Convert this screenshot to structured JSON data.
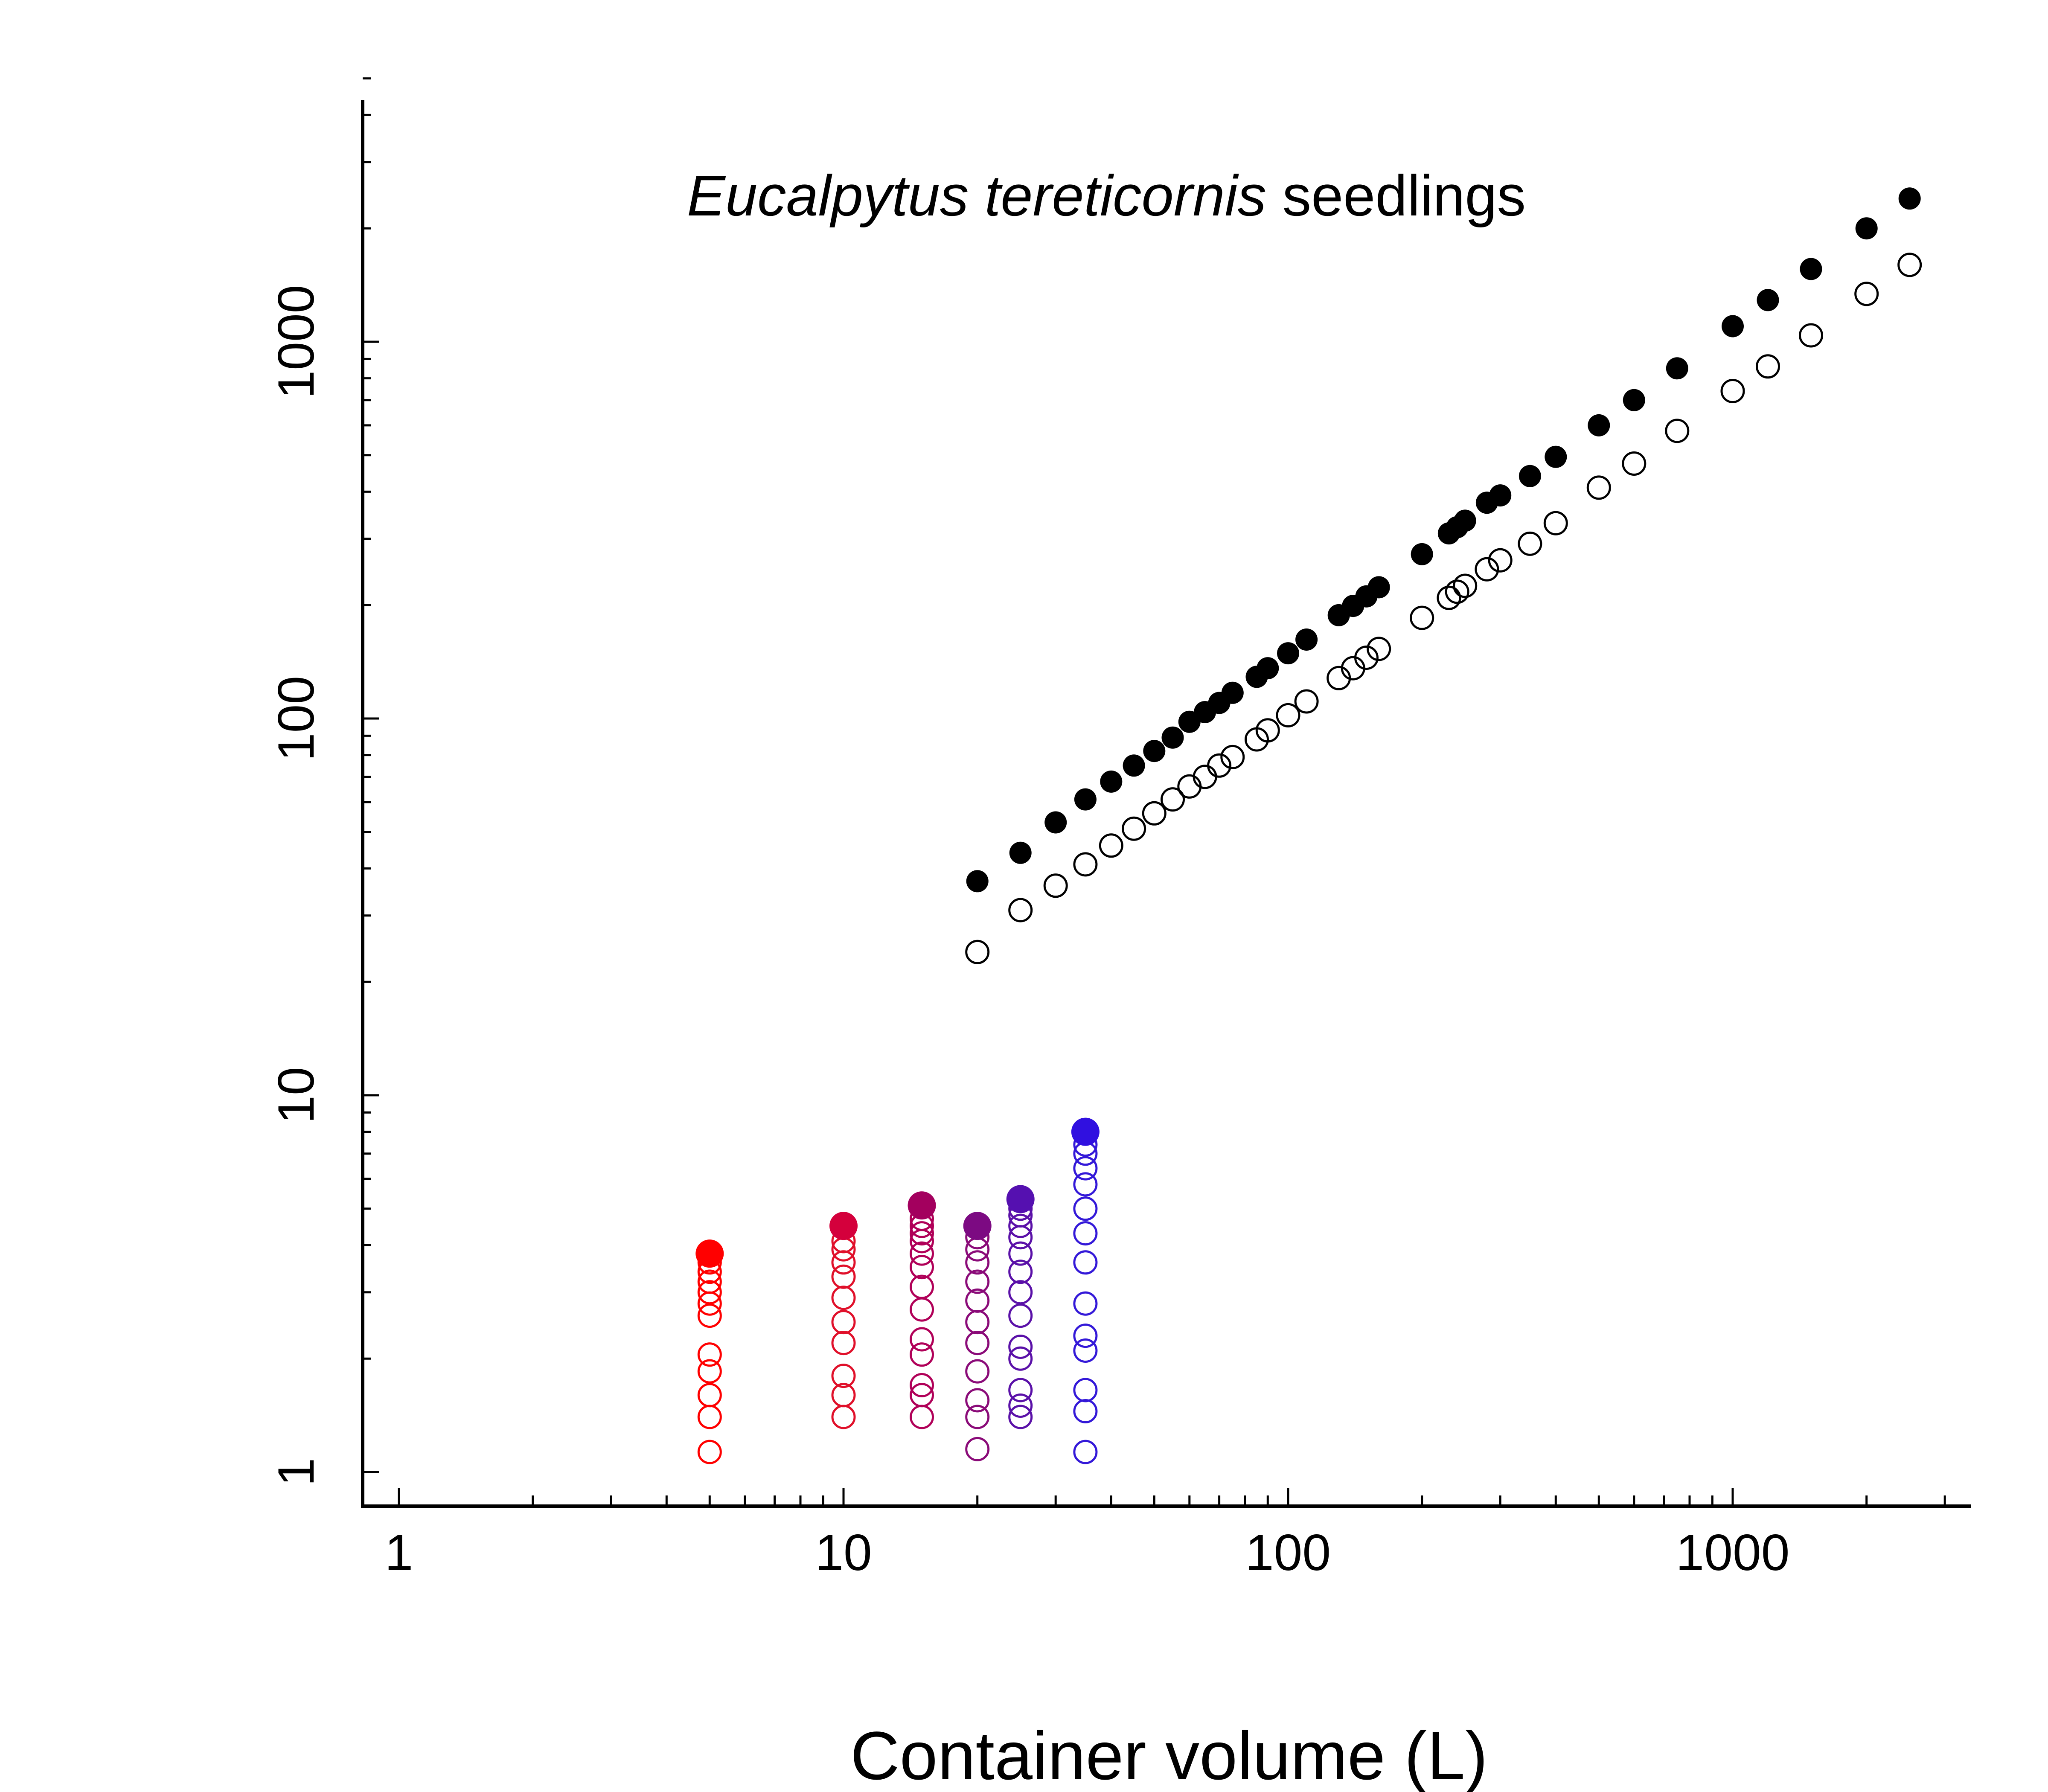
{
  "chart_data": {
    "type": "scatter",
    "title": {
      "italic": "Eucalpytus tereticornis",
      "rest": " seedlings"
    },
    "xlabel": "Container volume (L)",
    "ylabel": "",
    "xscale": "log",
    "yscale": "log",
    "xlim": [
      0.8,
      3300
    ],
    "ylim": [
      0.85,
      5000
    ],
    "xticks": [
      {
        "value": 1,
        "label": "1"
      },
      {
        "value": 10,
        "label": "10"
      },
      {
        "value": 100,
        "label": "100"
      },
      {
        "value": 1000,
        "label": "1000"
      }
    ],
    "yticks": [
      {
        "value": 1,
        "label": "1"
      },
      {
        "value": 10,
        "label": "10"
      },
      {
        "value": 100,
        "label": "100"
      },
      {
        "value": 1000,
        "label": "1000"
      }
    ],
    "grid": false,
    "legend": "none",
    "series": [
      {
        "style": "filled",
        "color": "#000000",
        "points": [
          [
            20,
            37
          ],
          [
            25,
            44
          ],
          [
            30,
            53
          ],
          [
            35,
            61
          ],
          [
            40,
            68
          ],
          [
            45,
            75
          ],
          [
            50,
            82
          ],
          [
            55,
            89
          ],
          [
            60,
            98
          ],
          [
            65,
            104
          ],
          [
            70,
            110
          ],
          [
            75,
            117
          ],
          [
            85,
            129
          ],
          [
            90,
            136
          ],
          [
            100,
            149
          ],
          [
            110,
            162
          ],
          [
            130,
            188
          ],
          [
            140,
            199
          ],
          [
            150,
            211
          ],
          [
            160,
            223
          ],
          [
            200,
            273
          ],
          [
            230,
            310
          ],
          [
            240,
            322
          ],
          [
            250,
            335
          ],
          [
            280,
            374
          ],
          [
            300,
            391
          ],
          [
            350,
            440
          ],
          [
            400,
            495
          ],
          [
            500,
            600
          ],
          [
            600,
            700
          ],
          [
            750,
            850
          ],
          [
            1000,
            1100
          ],
          [
            1200,
            1290
          ],
          [
            1500,
            1560
          ],
          [
            2000,
            2000
          ],
          [
            2500,
            2400
          ]
        ]
      },
      {
        "style": "open",
        "color": "#000000",
        "points": [
          [
            20,
            24
          ],
          [
            25,
            31
          ],
          [
            30,
            36
          ],
          [
            35,
            41
          ],
          [
            40,
            46
          ],
          [
            45,
            51
          ],
          [
            50,
            56
          ],
          [
            55,
            61
          ],
          [
            60,
            66
          ],
          [
            65,
            70
          ],
          [
            70,
            75
          ],
          [
            75,
            79
          ],
          [
            85,
            88
          ],
          [
            90,
            93
          ],
          [
            100,
            102
          ],
          [
            110,
            111
          ],
          [
            130,
            128
          ],
          [
            140,
            136
          ],
          [
            150,
            145
          ],
          [
            160,
            153
          ],
          [
            200,
            185
          ],
          [
            230,
            209
          ],
          [
            240,
            217
          ],
          [
            250,
            225
          ],
          [
            280,
            249
          ],
          [
            300,
            263
          ],
          [
            350,
            291
          ],
          [
            400,
            330
          ],
          [
            500,
            410
          ],
          [
            600,
            475
          ],
          [
            750,
            580
          ],
          [
            1000,
            740
          ],
          [
            1200,
            860
          ],
          [
            1500,
            1040
          ],
          [
            2000,
            1340
          ],
          [
            2500,
            1600
          ]
        ]
      },
      {
        "style": "open",
        "color": "#ff0000",
        "points": [
          [
            5,
            1.13
          ],
          [
            5,
            1.4
          ],
          [
            5,
            1.6
          ],
          [
            5,
            1.85
          ],
          [
            5,
            2.05
          ],
          [
            5,
            2.6
          ],
          [
            5,
            2.8
          ],
          [
            5,
            3.0
          ],
          [
            5,
            3.2
          ],
          [
            5,
            3.4
          ],
          [
            5,
            3.6
          ]
        ]
      },
      {
        "style": "filled",
        "color": "#ff0000",
        "points": [
          [
            5,
            3.8
          ]
        ]
      },
      {
        "style": "open",
        "color": "#e0102a",
        "points": [
          [
            10,
            1.4
          ],
          [
            10,
            1.6
          ],
          [
            10,
            1.8
          ],
          [
            10,
            2.2
          ],
          [
            10,
            2.5
          ],
          [
            10,
            2.9
          ],
          [
            10,
            3.3
          ],
          [
            10,
            3.6
          ],
          [
            10,
            3.9
          ],
          [
            10,
            4.1
          ]
        ]
      },
      {
        "style": "filled",
        "color": "#d4003c",
        "points": [
          [
            10,
            4.5
          ]
        ]
      },
      {
        "style": "open",
        "color": "#b00058",
        "points": [
          [
            15,
            1.4
          ],
          [
            15,
            1.6
          ],
          [
            15,
            1.7
          ],
          [
            15,
            2.05
          ],
          [
            15,
            2.25
          ],
          [
            15,
            2.7
          ],
          [
            15,
            3.1
          ],
          [
            15,
            3.5
          ],
          [
            15,
            3.8
          ],
          [
            15,
            4.1
          ],
          [
            15,
            4.3
          ],
          [
            15,
            4.5
          ],
          [
            15,
            4.7
          ]
        ]
      },
      {
        "style": "filled",
        "color": "#a3005e",
        "points": [
          [
            15,
            5.1
          ]
        ]
      },
      {
        "style": "open",
        "color": "#8a0a78",
        "points": [
          [
            20,
            1.15
          ],
          [
            20,
            1.4
          ],
          [
            20,
            1.55
          ],
          [
            20,
            1.85
          ],
          [
            20,
            2.2
          ],
          [
            20,
            2.5
          ],
          [
            20,
            2.85
          ],
          [
            20,
            3.2
          ],
          [
            20,
            3.6
          ],
          [
            20,
            3.9
          ],
          [
            20,
            4.2
          ]
        ]
      },
      {
        "style": "filled",
        "color": "#7c0a82",
        "points": [
          [
            20,
            4.5
          ]
        ]
      },
      {
        "style": "open",
        "color": "#5a10a8",
        "points": [
          [
            25,
            1.4
          ],
          [
            25,
            1.5
          ],
          [
            25,
            1.65
          ],
          [
            25,
            2.0
          ],
          [
            25,
            2.15
          ],
          [
            25,
            2.6
          ],
          [
            25,
            3.0
          ],
          [
            25,
            3.4
          ],
          [
            25,
            3.8
          ],
          [
            25,
            4.2
          ],
          [
            25,
            4.5
          ],
          [
            25,
            4.8
          ],
          [
            25,
            5.0
          ]
        ]
      },
      {
        "style": "filled",
        "color": "#5510b0",
        "points": [
          [
            25,
            5.3
          ]
        ]
      },
      {
        "style": "open",
        "color": "#3318d8",
        "points": [
          [
            35,
            1.13
          ],
          [
            35,
            1.45
          ],
          [
            35,
            1.65
          ],
          [
            35,
            2.1
          ],
          [
            35,
            2.3
          ],
          [
            35,
            2.8
          ],
          [
            35,
            3.6
          ],
          [
            35,
            4.3
          ],
          [
            35,
            5.0
          ],
          [
            35,
            5.8
          ],
          [
            35,
            6.4
          ],
          [
            35,
            7.0
          ],
          [
            35,
            7.4
          ]
        ]
      },
      {
        "style": "filled",
        "color": "#3010e0",
        "points": [
          [
            35,
            8.0
          ]
        ]
      }
    ]
  }
}
